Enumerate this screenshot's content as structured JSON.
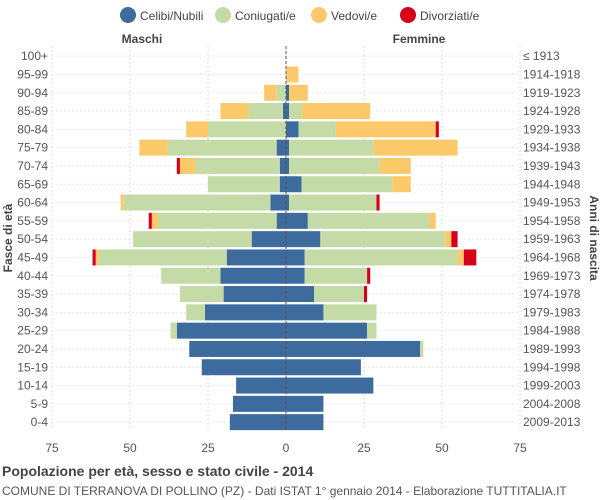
{
  "chart_data": {
    "type": "bar",
    "orientation": "horizontal-population-pyramid",
    "title": "Popolazione per età, sesso e stato civile - 2014",
    "subtitle": "COMUNE DI TERRANOVA DI POLLINO (PZ) - Dati ISTAT 1° gennaio 2014 - Elaborazione TUTTITALIA.IT",
    "left_header": "Maschi",
    "right_header": "Femmine",
    "ylabel_left": "Fasce di età",
    "ylabel_right": "Anni di nascita",
    "xlim": [
      -75,
      75
    ],
    "xticks": [
      -75,
      -50,
      -25,
      0,
      25,
      50,
      75
    ],
    "xtick_labels": [
      "75",
      "50",
      "25",
      "0",
      "25",
      "50",
      "75"
    ],
    "legend": [
      {
        "key": "celibi",
        "label": "Celibi/Nubili",
        "color": "#3d6b9e"
      },
      {
        "key": "coniugati",
        "label": "Coniugati/e",
        "color": "#c5dba7"
      },
      {
        "key": "vedovi",
        "label": "Vedovi/e",
        "color": "#fcc96a"
      },
      {
        "key": "divorziati",
        "label": "Divorziati/e",
        "color": "#d7001c"
      }
    ],
    "age_groups": [
      "100+",
      "95-99",
      "90-94",
      "85-89",
      "80-84",
      "75-79",
      "70-74",
      "65-69",
      "60-64",
      "55-59",
      "50-54",
      "45-49",
      "40-44",
      "35-39",
      "30-34",
      "25-29",
      "20-24",
      "15-19",
      "10-14",
      "5-9",
      "0-4"
    ],
    "birth_years": [
      "≤ 1913",
      "1914-1918",
      "1919-1923",
      "1924-1928",
      "1929-1933",
      "1934-1938",
      "1939-1943",
      "1944-1948",
      "1949-1953",
      "1954-1958",
      "1959-1963",
      "1964-1968",
      "1969-1973",
      "1974-1978",
      "1979-1983",
      "1984-1988",
      "1989-1993",
      "1994-1998",
      "1999-2003",
      "2004-2008",
      "2009-2013"
    ],
    "males": {
      "celibi": [
        0,
        0,
        0,
        1,
        0,
        3,
        2,
        2,
        5,
        3,
        11,
        19,
        21,
        20,
        26,
        35,
        31,
        27,
        16,
        17,
        18
      ],
      "coniugati": [
        0,
        0,
        3,
        11,
        25,
        35,
        27,
        23,
        47,
        38,
        38,
        41,
        19,
        14,
        6,
        2,
        0,
        0,
        0,
        0,
        0
      ],
      "vedovi": [
        0,
        0,
        4,
        9,
        7,
        9,
        5,
        0,
        1,
        2,
        0,
        1,
        0,
        0,
        0,
        0,
        0,
        0,
        0,
        0,
        0
      ],
      "divorziati": [
        0,
        0,
        0,
        0,
        0,
        0,
        1,
        0,
        0,
        1,
        0,
        1,
        0,
        0,
        0,
        0,
        0,
        0,
        0,
        0,
        0
      ]
    },
    "females": {
      "celibi": [
        0,
        0,
        1,
        1,
        4,
        1,
        1,
        5,
        1,
        7,
        11,
        6,
        6,
        9,
        12,
        26,
        43,
        24,
        28,
        12,
        12
      ],
      "coniugati": [
        0,
        0,
        0,
        4,
        12,
        27,
        29,
        29,
        28,
        39,
        40,
        49,
        20,
        16,
        17,
        3,
        1,
        0,
        0,
        0,
        0
      ],
      "vedovi": [
        0,
        4,
        6,
        22,
        32,
        27,
        10,
        6,
        0,
        2,
        2,
        2,
        0,
        0,
        0,
        0,
        0,
        0,
        0,
        0,
        0
      ],
      "divorziati": [
        0,
        0,
        0,
        0,
        1,
        0,
        0,
        0,
        1,
        0,
        2,
        4,
        1,
        1,
        0,
        0,
        0,
        0,
        0,
        0,
        0
      ]
    }
  }
}
